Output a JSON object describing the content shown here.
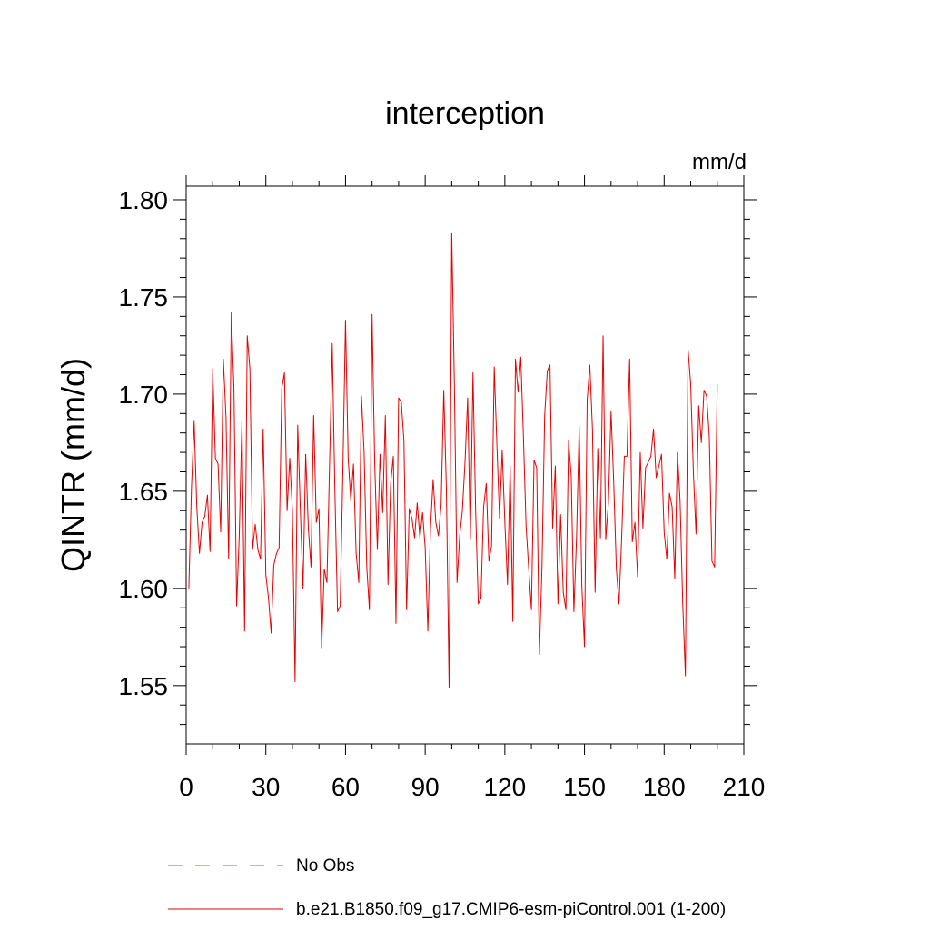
{
  "chart_data": {
    "type": "line",
    "title": "interception",
    "units_label": "mm/d",
    "xlabel": "",
    "ylabel": "QINTR  (mm/d)",
    "xlim": [
      0,
      210
    ],
    "ylim": [
      1.52,
      1.807
    ],
    "x_ticks": [
      0,
      30,
      60,
      90,
      120,
      150,
      180,
      210
    ],
    "x_tick_labels": [
      "0",
      "30",
      "60",
      "90",
      "120",
      "150",
      "180",
      "210"
    ],
    "y_ticks": [
      1.55,
      1.6,
      1.65,
      1.7,
      1.75,
      1.8
    ],
    "y_tick_labels": [
      "1.55",
      "1.60",
      "1.65",
      "1.70",
      "1.75",
      "1.80"
    ],
    "grid": false,
    "legend_position": "bottom-left, below plot",
    "legend": [
      {
        "name": "No Obs",
        "color": "#6a6acd",
        "style": "dashed"
      },
      {
        "name": "b.e21.B1850.f09_g17.CMIP6-esm-piControl.001 (1-200)",
        "color": "#e60000",
        "style": "solid"
      }
    ],
    "series": [
      {
        "name": "b.e21.B1850.f09_g17.CMIP6-esm-piControl.001 (1-200)",
        "color": "#e60000",
        "x_start": 1,
        "x_step": 1,
        "values": [
          1.6,
          1.652,
          1.686,
          1.642,
          1.618,
          1.634,
          1.637,
          1.648,
          1.619,
          1.713,
          1.667,
          1.664,
          1.629,
          1.718,
          1.688,
          1.615,
          1.742,
          1.702,
          1.591,
          1.628,
          1.686,
          1.578,
          1.73,
          1.713,
          1.62,
          1.633,
          1.62,
          1.615,
          1.682,
          1.607,
          1.595,
          1.577,
          1.612,
          1.618,
          1.621,
          1.703,
          1.711,
          1.64,
          1.667,
          1.64,
          1.552,
          1.684,
          1.64,
          1.6,
          1.669,
          1.631,
          1.611,
          1.689,
          1.634,
          1.641,
          1.569,
          1.61,
          1.603,
          1.664,
          1.726,
          1.65,
          1.588,
          1.591,
          1.66,
          1.738,
          1.667,
          1.645,
          1.664,
          1.618,
          1.603,
          1.699,
          1.67,
          1.611,
          1.589,
          1.741,
          1.664,
          1.62,
          1.669,
          1.639,
          1.689,
          1.602,
          1.654,
          1.668,
          1.582,
          1.698,
          1.696,
          1.676,
          1.589,
          1.641,
          1.636,
          1.626,
          1.644,
          1.626,
          1.639,
          1.621,
          1.578,
          1.631,
          1.656,
          1.634,
          1.627,
          1.643,
          1.702,
          1.65,
          1.549,
          1.783,
          1.705,
          1.603,
          1.627,
          1.64,
          1.665,
          1.698,
          1.625,
          1.711,
          1.64,
          1.592,
          1.595,
          1.642,
          1.654,
          1.614,
          1.622,
          1.714,
          1.674,
          1.636,
          1.671,
          1.634,
          1.602,
          1.663,
          1.583,
          1.718,
          1.701,
          1.719,
          1.678,
          1.632,
          1.61,
          1.589,
          1.666,
          1.662,
          1.566,
          1.612,
          1.689,
          1.712,
          1.715,
          1.631,
          1.663,
          1.592,
          1.638,
          1.598,
          1.589,
          1.676,
          1.658,
          1.588,
          1.626,
          1.683,
          1.601,
          1.57,
          1.697,
          1.715,
          1.682,
          1.598,
          1.672,
          1.626,
          1.73,
          1.625,
          1.644,
          1.691,
          1.655,
          1.61,
          1.592,
          1.626,
          1.668,
          1.668,
          1.718,
          1.624,
          1.634,
          1.606,
          1.67,
          1.631,
          1.662,
          1.665,
          1.668,
          1.682,
          1.657,
          1.663,
          1.669,
          1.629,
          1.615,
          1.649,
          1.642,
          1.605,
          1.67,
          1.645,
          1.592,
          1.555,
          1.723,
          1.705,
          1.66,
          1.628,
          1.694,
          1.675,
          1.702,
          1.699,
          1.678,
          1.614,
          1.611,
          1.705
        ]
      }
    ]
  }
}
